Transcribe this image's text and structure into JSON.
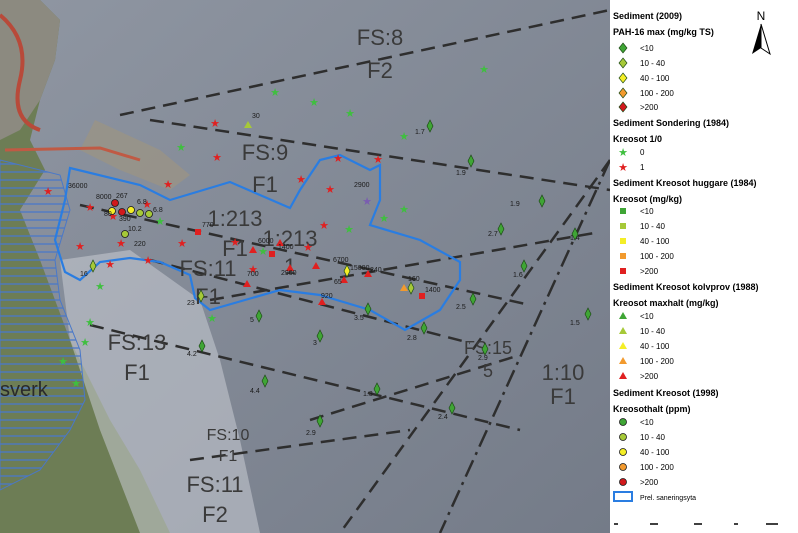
{
  "map": {
    "zone_labels": [
      {
        "id": "fs8-code",
        "text": "FS:8"
      },
      {
        "id": "fs8-class",
        "text": "F2"
      },
      {
        "id": "fs9-code",
        "text": "FS:9"
      },
      {
        "id": "fs9-class",
        "text": "F1"
      },
      {
        "id": "r1213a-code",
        "text": "1:213"
      },
      {
        "id": "r1213a-class",
        "text": "F1"
      },
      {
        "id": "r1213b-code",
        "text": "1:213"
      },
      {
        "id": "r1213b-class",
        "text": "1"
      },
      {
        "id": "fs11a-code",
        "text": "FS:11"
      },
      {
        "id": "fs11a-class",
        "text": "F1"
      },
      {
        "id": "fs13-code",
        "text": "FS:13"
      },
      {
        "id": "fs13-class",
        "text": "F1"
      },
      {
        "id": "fs15-code",
        "text": "FS:15"
      },
      {
        "id": "fs15-class",
        "text": "5"
      },
      {
        "id": "r110-code",
        "text": "1:10"
      },
      {
        "id": "r110-class",
        "text": "F1"
      },
      {
        "id": "fs10-code",
        "text": "FS:10"
      },
      {
        "id": "fs10-class",
        "text": "F1"
      },
      {
        "id": "fs11b-code",
        "text": "FS:11"
      },
      {
        "id": "fs11b-class",
        "text": "F2"
      },
      {
        "id": "place-sverk",
        "text": "sverk"
      }
    ],
    "value_labels": [
      "30",
      "1.7",
      "1.9",
      "1.9",
      "2900",
      "36000",
      "8000",
      "267",
      "6.8",
      "80",
      "390",
      "6.8",
      "10.2",
      "220",
      "770",
      "6000",
      "1400",
      "2900",
      "6700",
      "15000",
      "240",
      "160",
      "1400",
      "700",
      "920",
      "65",
      "2.7",
      "1.6",
      "1.4",
      "23",
      "5",
      "3",
      "3.5",
      "2.8",
      "2.5",
      "1.5",
      "2.9",
      "4.2",
      "4.4",
      "1.3",
      "2.9",
      "2.4",
      "16"
    ]
  },
  "legend": {
    "north_arrow": "N",
    "sections": [
      {
        "title": "Sediment (2009)",
        "subtitle": "PAH-16 max (mg/kg TS)",
        "symbol": "diamond",
        "items": [
          {
            "label": "<10",
            "color": "#3fa535"
          },
          {
            "label": "10 - 40",
            "color": "#a6c938"
          },
          {
            "label": "40 - 100",
            "color": "#f4ee27"
          },
          {
            "label": "100 - 200",
            "color": "#f29a2e"
          },
          {
            "label": ">200",
            "color": "#d1191c"
          }
        ]
      },
      {
        "title": "Sediment Sondering (1984)",
        "subtitle": "Kreosot 1/0",
        "symbol": "star",
        "items": [
          {
            "label": "0",
            "color": "#3fbf3f"
          },
          {
            "label": "1",
            "color": "#e02020"
          }
        ]
      },
      {
        "title": "Sediment Kreosot huggare (1984)",
        "subtitle": "Kreosot (mg/kg)",
        "symbol": "square",
        "items": [
          {
            "label": "<10",
            "color": "#3fa535"
          },
          {
            "label": "10 - 40",
            "color": "#a6c938"
          },
          {
            "label": "40 - 100",
            "color": "#f4ee27"
          },
          {
            "label": "100 - 200",
            "color": "#f29a2e"
          },
          {
            "label": ">200",
            "color": "#e02020"
          }
        ]
      },
      {
        "title": "Sediment Kreosot kolvprov (1988)",
        "subtitle": "Kreosot maxhalt (mg/kg)",
        "symbol": "triangle",
        "items": [
          {
            "label": "<10",
            "color": "#3fa535"
          },
          {
            "label": "10 - 40",
            "color": "#a6c938"
          },
          {
            "label": "40 - 100",
            "color": "#f4ee27"
          },
          {
            "label": "100 - 200",
            "color": "#f29a2e"
          },
          {
            "label": ">200",
            "color": "#e02020"
          }
        ]
      },
      {
        "title": "Sediment Kreosot (1998)",
        "subtitle": "Kreosothalt (ppm)",
        "symbol": "circle",
        "items": [
          {
            "label": "<10",
            "color": "#3fa535"
          },
          {
            "label": "10 - 40",
            "color": "#a6c938"
          },
          {
            "label": "40 - 100",
            "color": "#f4ee27"
          },
          {
            "label": "100 - 200",
            "color": "#f29a2e"
          },
          {
            "label": ">200",
            "color": "#d1191c"
          }
        ]
      }
    ],
    "polygon_item": {
      "label": "Prel. saneringsyta",
      "color": "#2a7de1"
    }
  }
}
